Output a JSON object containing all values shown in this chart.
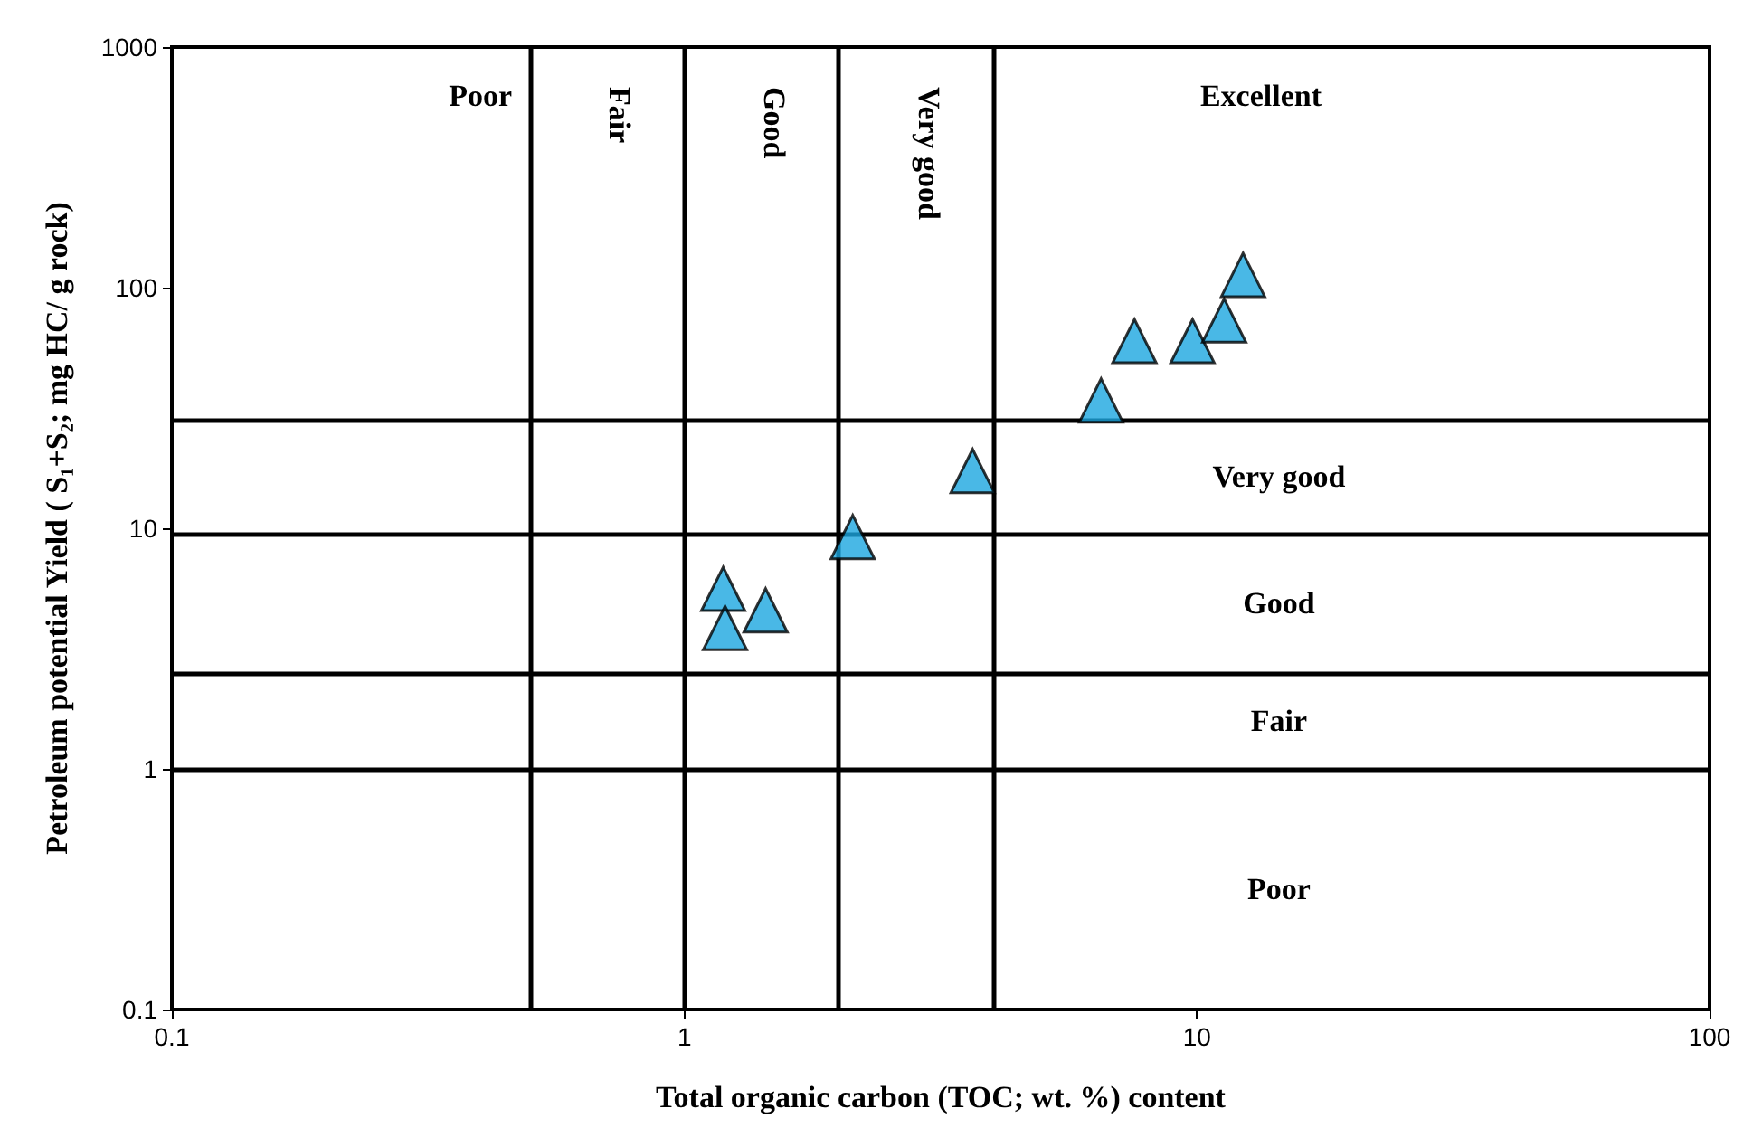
{
  "chart_data": {
    "type": "scatter",
    "xlabel": "Total organic carbon (TOC; wt. %) content",
    "ylabel": "Petroleum potential Yield ( S₁+S₂; mg HC/ g rock)",
    "log": "xy",
    "xlim": [
      0.1,
      100
    ],
    "xticks": [
      0.1,
      1,
      10,
      100
    ],
    "ylim": [
      0.1,
      1000
    ],
    "yticks": [
      0.1,
      1,
      10,
      100,
      1000
    ],
    "grid": false,
    "marker": "triangle",
    "series": [
      {
        "color": "#1ca6e0",
        "x": [
          1.19,
          1.2,
          1.44,
          2.13,
          3.65,
          6.5,
          7.55,
          9.8,
          11.3,
          12.3
        ],
        "values": [
          5.6,
          3.85,
          4.56,
          9.2,
          17.3,
          34,
          60,
          60,
          73,
          113
        ]
      }
    ],
    "ref_lines": [
      {
        "axis": "x",
        "value": 0.5
      },
      {
        "axis": "x",
        "value": 1
      },
      {
        "axis": "x",
        "value": 2
      },
      {
        "axis": "x",
        "value": 4
      },
      {
        "axis": "y",
        "value": 1
      },
      {
        "axis": "y",
        "value": 2.5
      },
      {
        "axis": "y",
        "value": 9.5
      },
      {
        "axis": "y",
        "value": 28
      }
    ],
    "annotations": [
      "Poor",
      "Fair",
      "Good",
      "Very good",
      "Excellent",
      "Very good",
      "Good",
      "Fair",
      "Poor"
    ]
  }
}
